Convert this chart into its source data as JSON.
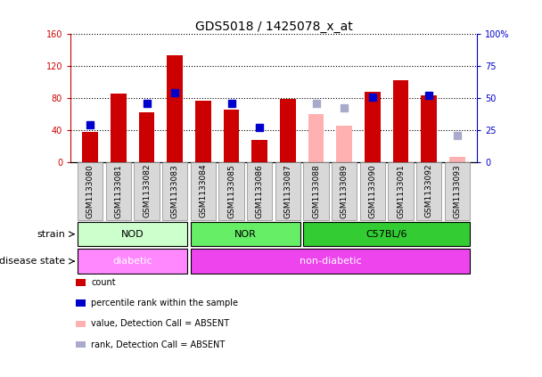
{
  "title": "GDS5018 / 1425078_x_at",
  "samples": [
    "GSM1133080",
    "GSM1133081",
    "GSM1133082",
    "GSM1133083",
    "GSM1133084",
    "GSM1133085",
    "GSM1133086",
    "GSM1133087",
    "GSM1133088",
    "GSM1133089",
    "GSM1133090",
    "GSM1133091",
    "GSM1133092",
    "GSM1133093"
  ],
  "count_values": [
    38,
    86,
    62,
    133,
    77,
    65,
    28,
    79,
    null,
    null,
    88,
    102,
    83,
    null
  ],
  "rank_values": [
    29,
    null,
    46,
    54,
    null,
    46,
    27,
    null,
    null,
    null,
    51,
    null,
    52,
    null
  ],
  "absent_count": [
    null,
    null,
    null,
    null,
    null,
    null,
    null,
    null,
    60,
    45,
    null,
    null,
    null,
    7
  ],
  "absent_rank": [
    null,
    null,
    null,
    null,
    null,
    null,
    null,
    null,
    46,
    42,
    null,
    null,
    null,
    21
  ],
  "count_color": "#cc0000",
  "rank_color": "#0000cc",
  "absent_count_color": "#ffb0b0",
  "absent_rank_color": "#aaaacc",
  "ylim_left": [
    0,
    160
  ],
  "ylim_right": [
    0,
    100
  ],
  "yticks_left": [
    0,
    40,
    80,
    120,
    160
  ],
  "ytick_labels_left": [
    "0",
    "40",
    "80",
    "120",
    "160"
  ],
  "yticks_right": [
    0,
    25,
    50,
    75,
    100
  ],
  "ytick_labels_right": [
    "0",
    "25",
    "50",
    "75",
    "100%"
  ],
  "strain_groups": [
    {
      "label": "NOD",
      "start": 0,
      "end": 3,
      "color": "#ccffcc"
    },
    {
      "label": "NOR",
      "start": 4,
      "end": 7,
      "color": "#66ee66"
    },
    {
      "label": "C57BL/6",
      "start": 8,
      "end": 13,
      "color": "#33cc33"
    }
  ],
  "disease_groups": [
    {
      "label": "diabetic",
      "start": 0,
      "end": 3,
      "color": "#ff88ff"
    },
    {
      "label": "non-diabetic",
      "start": 4,
      "end": 13,
      "color": "#ee44ee"
    }
  ],
  "strain_label": "strain",
  "disease_label": "disease state",
  "legend_items": [
    {
      "label": "count",
      "color": "#cc0000"
    },
    {
      "label": "percentile rank within the sample",
      "color": "#0000cc"
    },
    {
      "label": "value, Detection Call = ABSENT",
      "color": "#ffb0b0"
    },
    {
      "label": "rank, Detection Call = ABSENT",
      "color": "#aaaacc"
    }
  ],
  "bar_width": 0.55,
  "rank_marker_size": 6,
  "plot_bg_color": "#ffffff",
  "grid_color": "#000000",
  "title_fontsize": 10,
  "tick_fontsize": 7,
  "annotation_fontsize": 8
}
